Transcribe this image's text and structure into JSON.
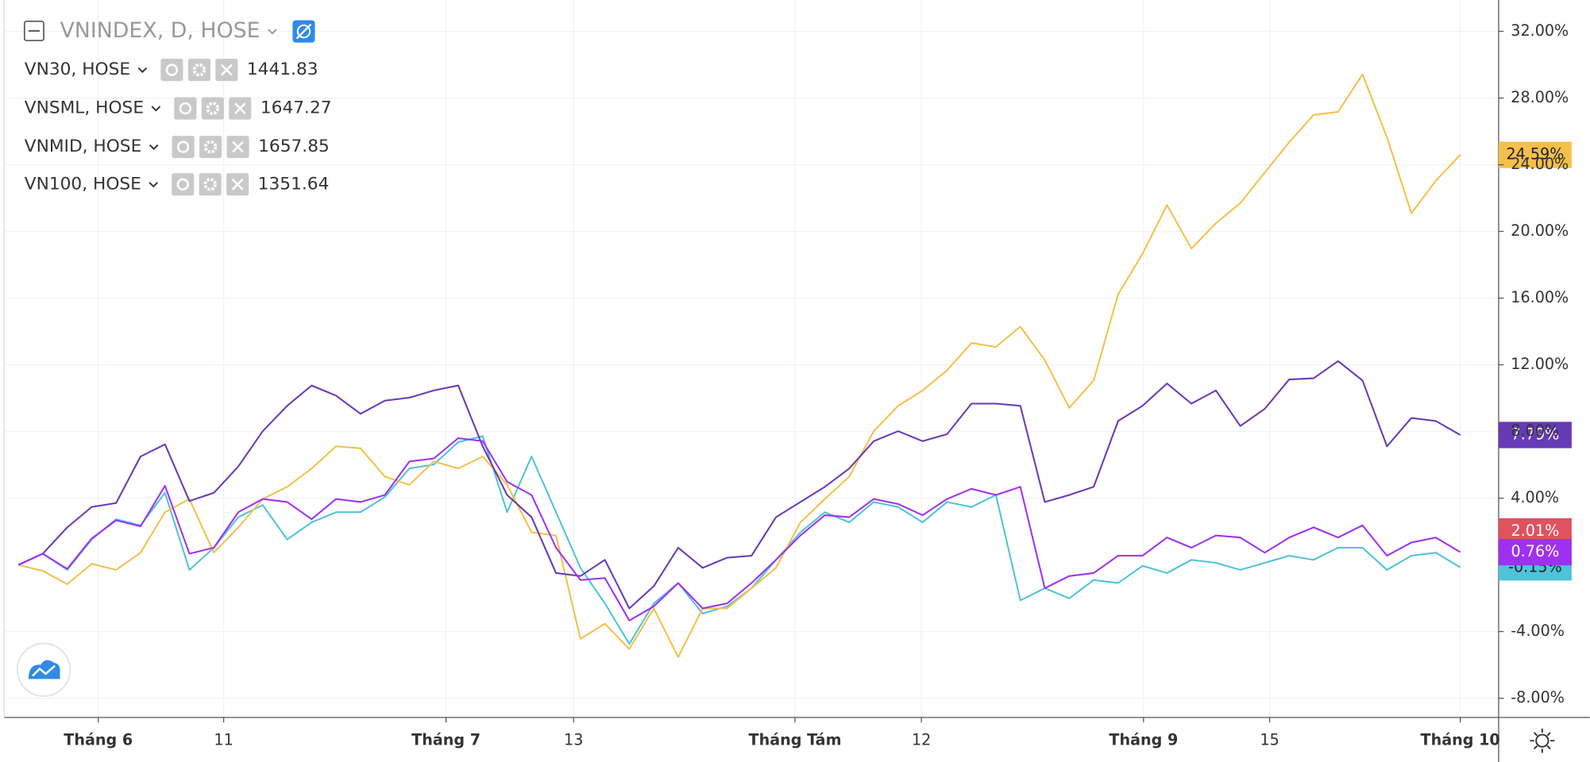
{
  "chart_data": {
    "type": "line",
    "title": "VNINDEX, D, HOSE",
    "main_series": {
      "color": "#e05260",
      "end_value": 2.01,
      "end_label": "2.01%"
    },
    "xlim": [
      -0.58,
      60.57
    ],
    "xticks": [
      {
        "value": 3.27,
        "label": "Tháng 6"
      },
      {
        "value": 8.4,
        "label": "11"
      },
      {
        "value": 17.5,
        "label": "Tháng 7"
      },
      {
        "value": 22.72,
        "label": "13"
      },
      {
        "value": 31.78,
        "label": "Tháng Tám"
      },
      {
        "value": 36.95,
        "label": "12"
      },
      {
        "value": 46.04,
        "label": "Tháng 9"
      },
      {
        "value": 51.2,
        "label": "15"
      },
      {
        "value": 59,
        "label": "Tháng 10"
      }
    ],
    "ylim": [
      -9.15,
      33.88
    ],
    "yticks": [
      {
        "value": 32,
        "label": "32.00%"
      },
      {
        "value": 28,
        "label": "28.00%"
      },
      {
        "value": 24,
        "label": "24.00%"
      },
      {
        "value": 20,
        "label": "20.00%"
      },
      {
        "value": 16,
        "label": "16.00%"
      },
      {
        "value": 12,
        "label": "12.00%"
      },
      {
        "value": 8,
        "label": "8.00%"
      },
      {
        "value": 4,
        "label": "4.00%"
      },
      {
        "value": -4,
        "label": "-4.00%"
      },
      {
        "value": -8,
        "label": "-8.00%"
      }
    ],
    "grid": true,
    "series": [
      {
        "name": "VN30, HOSE",
        "legend_value": "1441.83",
        "color": "#4fc3d9",
        "end_label": "-0.15%",
        "values": [
          0,
          0.67,
          -0.3,
          1.52,
          2.74,
          2.37,
          4.32,
          -0.3,
          1.03,
          2.86,
          3.59,
          1.52,
          2.55,
          3.16,
          3.16,
          4.07,
          5.78,
          6.02,
          7.36,
          7.72,
          3.16,
          6.5,
          3.16,
          -0.18,
          -2.31,
          -4.74,
          -2.31,
          -1.09,
          -2.92,
          -2.49,
          -1.4,
          0.3,
          1.95,
          3.16,
          2.55,
          3.77,
          3.47,
          2.55,
          3.77,
          3.47,
          4.19,
          -2.13,
          -1.4,
          -2.01,
          -0.91,
          -1.09,
          -0.06,
          -0.49,
          0.3,
          0.12,
          -0.3,
          0.12,
          0.55,
          0.3,
          1.03,
          1.03,
          -0.3,
          0.55,
          0.73,
          -0.15
        ]
      },
      {
        "name": "VNSML, HOSE",
        "legend_value": "1647.27",
        "color": "#f5c04a",
        "end_label": "24.59%",
        "values": [
          0,
          -0.36,
          -1.16,
          0.06,
          -0.3,
          0.73,
          3.16,
          3.95,
          0.73,
          2.25,
          3.95,
          4.68,
          5.78,
          7.11,
          6.99,
          5.29,
          4.8,
          6.2,
          5.78,
          6.5,
          4.8,
          1.95,
          1.76,
          -4.44,
          -3.53,
          -5.05,
          -2.61,
          -5.53,
          -2.61,
          -2.61,
          -1.4,
          -0.18,
          2.55,
          3.95,
          5.29,
          8.02,
          9.54,
          10.46,
          11.67,
          13.31,
          13.07,
          14.29,
          12.28,
          9.42,
          11.06,
          16.23,
          18.66,
          21.58,
          18.97,
          20.49,
          21.7,
          23.53,
          25.35,
          26.99,
          27.17,
          29.42,
          25.65,
          21.09,
          23.04,
          24.59
        ]
      },
      {
        "name": "VNMID, HOSE",
        "legend_value": "1657.85",
        "color": "#673ab7",
        "end_label": "7.79%",
        "values": [
          0,
          0.67,
          2.25,
          3.47,
          3.71,
          6.5,
          7.23,
          3.83,
          4.32,
          5.9,
          8.02,
          9.54,
          10.76,
          10.15,
          9.06,
          9.85,
          10.03,
          10.46,
          10.76,
          7.11,
          4.19,
          2.86,
          -0.49,
          -0.67,
          0.3,
          -2.61,
          -1.28,
          1.03,
          -0.18,
          0.43,
          0.55,
          2.86,
          3.77,
          4.68,
          5.78,
          7.42,
          8.02,
          7.42,
          7.84,
          9.67,
          9.67,
          9.54,
          3.77,
          4.19,
          4.68,
          8.63,
          9.54,
          10.88,
          9.67,
          10.46,
          8.33,
          9.36,
          11.12,
          11.19,
          12.22,
          11.06,
          7.11,
          8.81,
          8.63,
          7.79
        ]
      },
      {
        "name": "VN100, HOSE",
        "legend_value": "1351.64",
        "color": "#a030f0",
        "end_label": "0.76%",
        "values": [
          0,
          0.67,
          -0.24,
          1.58,
          2.67,
          2.31,
          4.74,
          0.67,
          1.03,
          3.16,
          3.95,
          3.77,
          2.74,
          3.95,
          3.77,
          4.19,
          6.2,
          6.38,
          7.6,
          7.42,
          4.98,
          4.19,
          1.03,
          -0.91,
          -0.79,
          -3.34,
          -2.49,
          -1.09,
          -2.61,
          -2.31,
          -1.09,
          0.3,
          1.76,
          2.98,
          2.86,
          3.95,
          3.65,
          2.98,
          3.95,
          4.56,
          4.19,
          4.68,
          -1.4,
          -0.67,
          -0.49,
          0.55,
          0.55,
          1.64,
          1.03,
          1.76,
          1.64,
          0.73,
          1.64,
          2.25,
          1.64,
          2.37,
          0.55,
          1.34,
          1.64,
          0.76
        ]
      }
    ]
  }
}
